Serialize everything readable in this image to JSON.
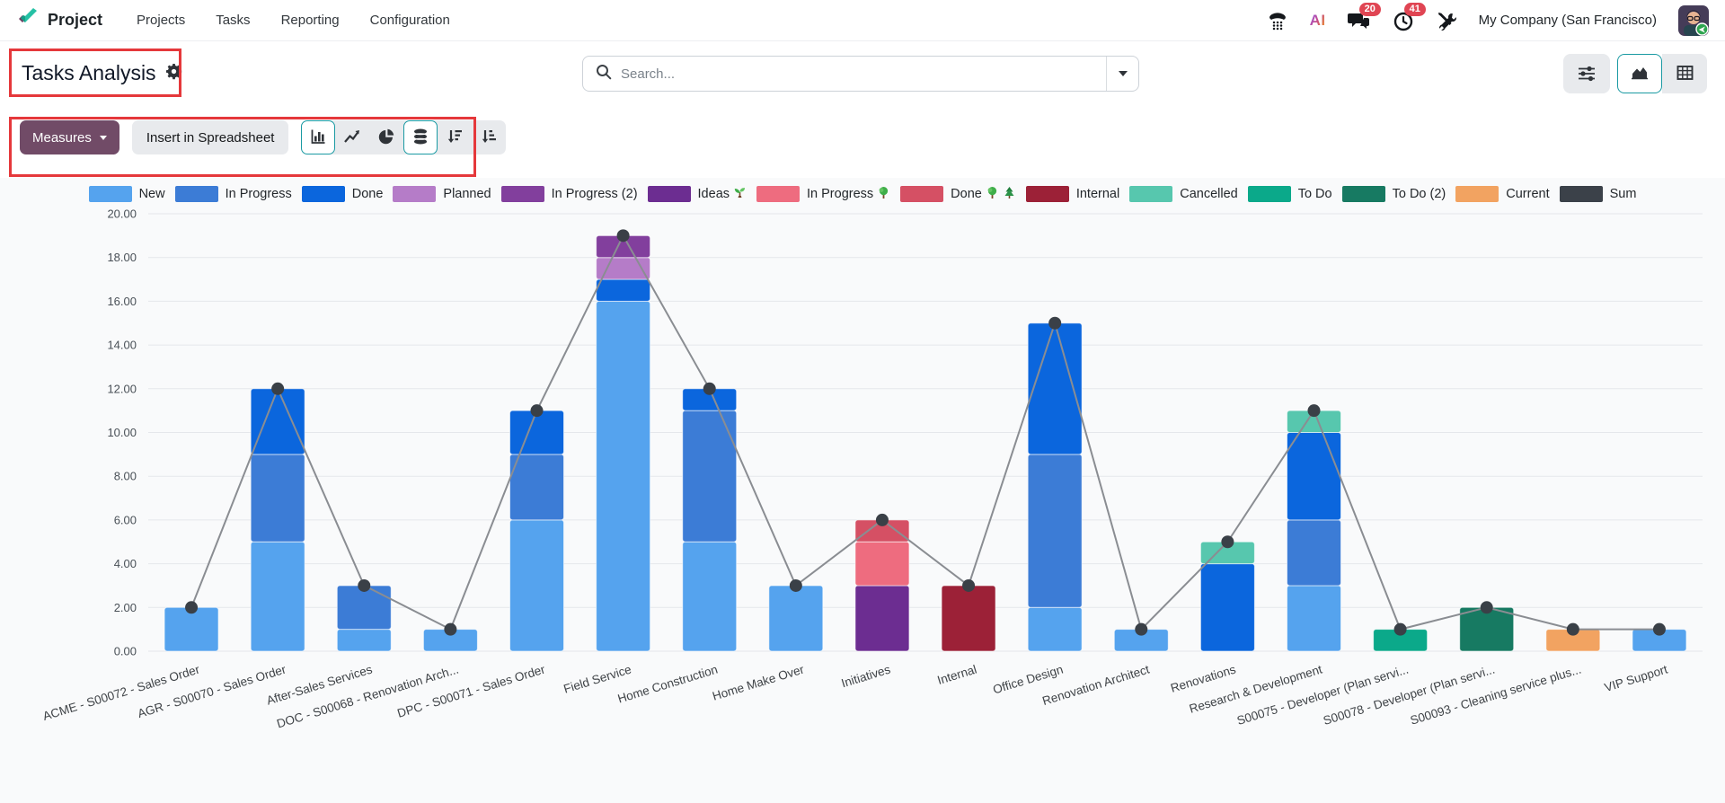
{
  "navbar": {
    "app_name": "Project",
    "menu_items": [
      "Projects",
      "Tasks",
      "Reporting",
      "Configuration"
    ],
    "systray": {
      "icons": [
        "voip-phone-icon",
        "ai-icon",
        "messages-icon",
        "activities-icon",
        "tools-icon"
      ],
      "messages_badge": "20",
      "activities_badge": "41",
      "company_name": "My Company (San Francisco)"
    }
  },
  "control_panel": {
    "title": "Tasks Analysis",
    "search_placeholder": "Search...",
    "measures_label": "Measures",
    "insert_spreadsheet_label": "Insert in Spreadsheet",
    "graph_buttons": [
      {
        "name": "bar-chart",
        "active": true
      },
      {
        "name": "line-chart",
        "active": false
      },
      {
        "name": "pie-chart",
        "active": false
      },
      {
        "name": "stacked",
        "active": true
      },
      {
        "name": "sort-descending",
        "active": false
      },
      {
        "name": "sort-ascending",
        "active": false
      }
    ],
    "view_switcher": [
      {
        "name": "graph",
        "active": true
      },
      {
        "name": "pivot",
        "active": false
      }
    ]
  },
  "annotations": {
    "highlight_color": "#e5383b",
    "boxes": [
      "page-title",
      "graph-toolbar"
    ]
  },
  "chart_data": {
    "type": "bar",
    "stacked": true,
    "grid": true,
    "legend_position": "top",
    "ylim": [
      0,
      20
    ],
    "ytick_step": 2,
    "ytick_format": "0.00",
    "categories": [
      "ACME - S00072 - Sales Order",
      "AGR - S00070 - Sales Order",
      "After-Sales Services",
      "DOC - S00068 - Renovation Arch...",
      "DPC - S00071 - Sales Order",
      "Field Service",
      "Home Construction",
      "Home Make Over",
      "Initiatives",
      "Internal",
      "Office Design",
      "Renovation Architect",
      "Renovations",
      "Research & Development",
      "S00075 - Developer (Plan servi...",
      "S00078 - Developer (Plan servi...",
      "S00093 - Cleaning service plus...",
      "VIP Support"
    ],
    "series": [
      {
        "label": "New",
        "color": "#55a3ee",
        "values": [
          2,
          5,
          1,
          1,
          6,
          16,
          5,
          3,
          0,
          0,
          2,
          1,
          0,
          3,
          0,
          0,
          0,
          1
        ]
      },
      {
        "label": "In Progress",
        "color": "#3c7cd6",
        "values": [
          0,
          4,
          2,
          0,
          3,
          0,
          6,
          0,
          0,
          0,
          7,
          0,
          0,
          3,
          0,
          0,
          0,
          0
        ]
      },
      {
        "label": "Done",
        "color": "#0b66dd",
        "values": [
          0,
          3,
          0,
          0,
          2,
          1,
          1,
          0,
          0,
          0,
          6,
          0,
          4,
          4,
          0,
          0,
          0,
          0
        ]
      },
      {
        "label": "Planned",
        "color": "#b57cc8",
        "values": [
          0,
          0,
          0,
          0,
          0,
          1,
          0,
          0,
          0,
          0,
          0,
          0,
          0,
          0,
          0,
          0,
          0,
          0
        ]
      },
      {
        "label": "In Progress (2)",
        "color": "#823f9d",
        "values": [
          0,
          0,
          0,
          0,
          0,
          1,
          0,
          0,
          0,
          0,
          0,
          0,
          0,
          0,
          0,
          0,
          0,
          0
        ]
      },
      {
        "label": "Ideas",
        "color": "#6c2d91",
        "values": [
          0,
          0,
          0,
          0,
          0,
          0,
          0,
          0,
          3,
          0,
          0,
          0,
          0,
          0,
          0,
          0,
          0,
          0
        ]
      },
      {
        "label": "In Progress",
        "color": "#ee6c7f",
        "values": [
          0,
          0,
          0,
          0,
          0,
          0,
          0,
          0,
          2,
          0,
          0,
          0,
          0,
          0,
          0,
          0,
          0,
          0
        ]
      },
      {
        "label": "Done",
        "color": "#d55064",
        "values": [
          0,
          0,
          0,
          0,
          0,
          0,
          0,
          0,
          1,
          0,
          0,
          0,
          0,
          0,
          0,
          0,
          0,
          0
        ]
      },
      {
        "label": "Internal",
        "color": "#9c2137",
        "values": [
          0,
          0,
          0,
          0,
          0,
          0,
          0,
          0,
          0,
          3,
          0,
          0,
          0,
          0,
          0,
          0,
          0,
          0
        ]
      },
      {
        "label": "Cancelled",
        "color": "#57c7ae",
        "values": [
          0,
          0,
          0,
          0,
          0,
          0,
          0,
          0,
          0,
          0,
          0,
          0,
          1,
          1,
          0,
          0,
          0,
          0
        ]
      },
      {
        "label": "To Do",
        "color": "#0ba98a",
        "values": [
          0,
          0,
          0,
          0,
          0,
          0,
          0,
          0,
          0,
          0,
          0,
          0,
          0,
          0,
          1,
          0,
          0,
          0
        ]
      },
      {
        "label": "To Do (2)",
        "color": "#177a62",
        "values": [
          0,
          0,
          0,
          0,
          0,
          0,
          0,
          0,
          0,
          0,
          0,
          0,
          0,
          0,
          0,
          2,
          0,
          0
        ]
      },
      {
        "label": "Current",
        "color": "#f2a361",
        "values": [
          0,
          0,
          0,
          0,
          0,
          0,
          0,
          0,
          0,
          0,
          0,
          0,
          0,
          0,
          0,
          0,
          1,
          0
        ]
      }
    ],
    "line_series": {
      "name": "Sum",
      "color": "#8a8d92",
      "dot_color": "#3a4047",
      "values": [
        2,
        12,
        3,
        1,
        11,
        19,
        12,
        3,
        6,
        3,
        15,
        1,
        5,
        11,
        1,
        2,
        1,
        1
      ]
    },
    "legend": [
      {
        "label": "New",
        "color": "#55a3ee"
      },
      {
        "label": "In Progress",
        "color": "#3c7cd6"
      },
      {
        "label": "Done",
        "color": "#0b66dd"
      },
      {
        "label": "Planned",
        "color": "#b57cc8"
      },
      {
        "label": "In Progress (2)",
        "color": "#823f9d"
      },
      {
        "label": "Ideas",
        "color": "#6c2d91",
        "icons": [
          "seedling-icon"
        ]
      },
      {
        "label": "In Progress",
        "color": "#ee6c7f",
        "icons": [
          "deciduous-tree-icon"
        ]
      },
      {
        "label": "Done",
        "color": "#d55064",
        "icons": [
          "deciduous-tree-icon",
          "evergreen-tree-icon"
        ]
      },
      {
        "label": "Internal",
        "color": "#9c2137"
      },
      {
        "label": "Cancelled",
        "color": "#57c7ae"
      },
      {
        "label": "To Do",
        "color": "#0ba98a"
      },
      {
        "label": "To Do (2)",
        "color": "#177a62"
      },
      {
        "label": "Current",
        "color": "#f2a361"
      },
      {
        "label": "Sum",
        "color": "#3b4149"
      }
    ]
  }
}
